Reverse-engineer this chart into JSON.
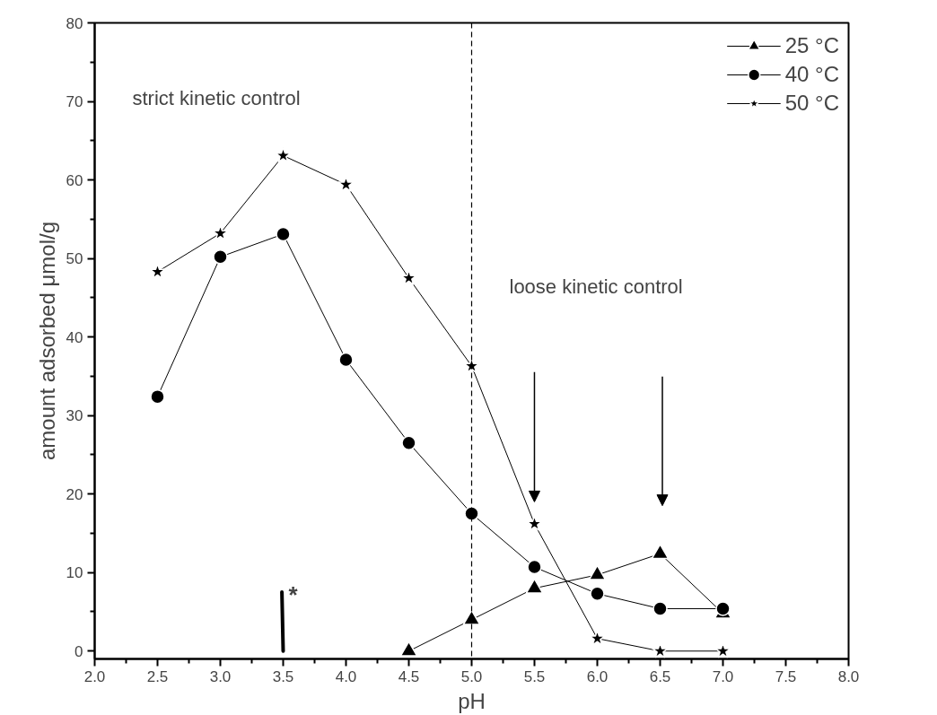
{
  "chart_data": {
    "type": "line",
    "xlabel": "pH",
    "ylabel": "amount adsorbed μmol/g",
    "x": [
      2.5,
      3.0,
      3.5,
      4.0,
      4.5,
      5.0,
      5.5,
      6.0,
      6.5,
      7.0
    ],
    "series": [
      {
        "name": "25 °C",
        "color": "#000000",
        "marker": "triangle",
        "values": [
          null,
          null,
          null,
          null,
          0,
          4.0,
          8.0,
          9.7,
          12.4,
          4.8
        ]
      },
      {
        "name": "40 °C",
        "color": "#000000",
        "marker": "circle",
        "values": [
          32.4,
          50.2,
          53.1,
          37.1,
          26.5,
          17.5,
          10.7,
          7.3,
          5.4,
          5.4
        ]
      },
      {
        "name": "50 °C",
        "color": "#000000",
        "marker": "star",
        "values": [
          48.3,
          53.2,
          63.1,
          59.4,
          47.5,
          36.3,
          16.2,
          1.6,
          0,
          0
        ]
      }
    ],
    "xlim": [
      2.0,
      8.0
    ],
    "xticks": [
      {
        "value": 2.0,
        "label": "2.0"
      },
      {
        "value": 2.5,
        "label": "2.5"
      },
      {
        "value": 3.0,
        "label": "3.0"
      },
      {
        "value": 3.5,
        "label": "3.5"
      },
      {
        "value": 4.0,
        "label": "4.0"
      },
      {
        "value": 4.5,
        "label": "4.5"
      },
      {
        "value": 5.0,
        "label": "5.0"
      },
      {
        "value": 5.5,
        "label": "5.5"
      },
      {
        "value": 6.0,
        "label": "6.0"
      },
      {
        "value": 6.5,
        "label": "6.5"
      },
      {
        "value": 7.0,
        "label": "7.0"
      },
      {
        "value": 7.5,
        "label": "7.5"
      },
      {
        "value": 8.0,
        "label": "8.0"
      }
    ],
    "ylim": [
      -1,
      80
    ],
    "yticks": [
      0,
      10,
      20,
      30,
      40,
      50,
      60,
      70,
      80
    ],
    "ref_lines": [
      {
        "axis": "x",
        "value": 5.0,
        "label": null,
        "line_style": "dashed",
        "color": "#000000"
      }
    ],
    "annotations": [
      "strict kinetic control",
      "loose kinetic control",
      "*"
    ],
    "grid": false,
    "legend": "top right",
    "line_style": "solid"
  }
}
